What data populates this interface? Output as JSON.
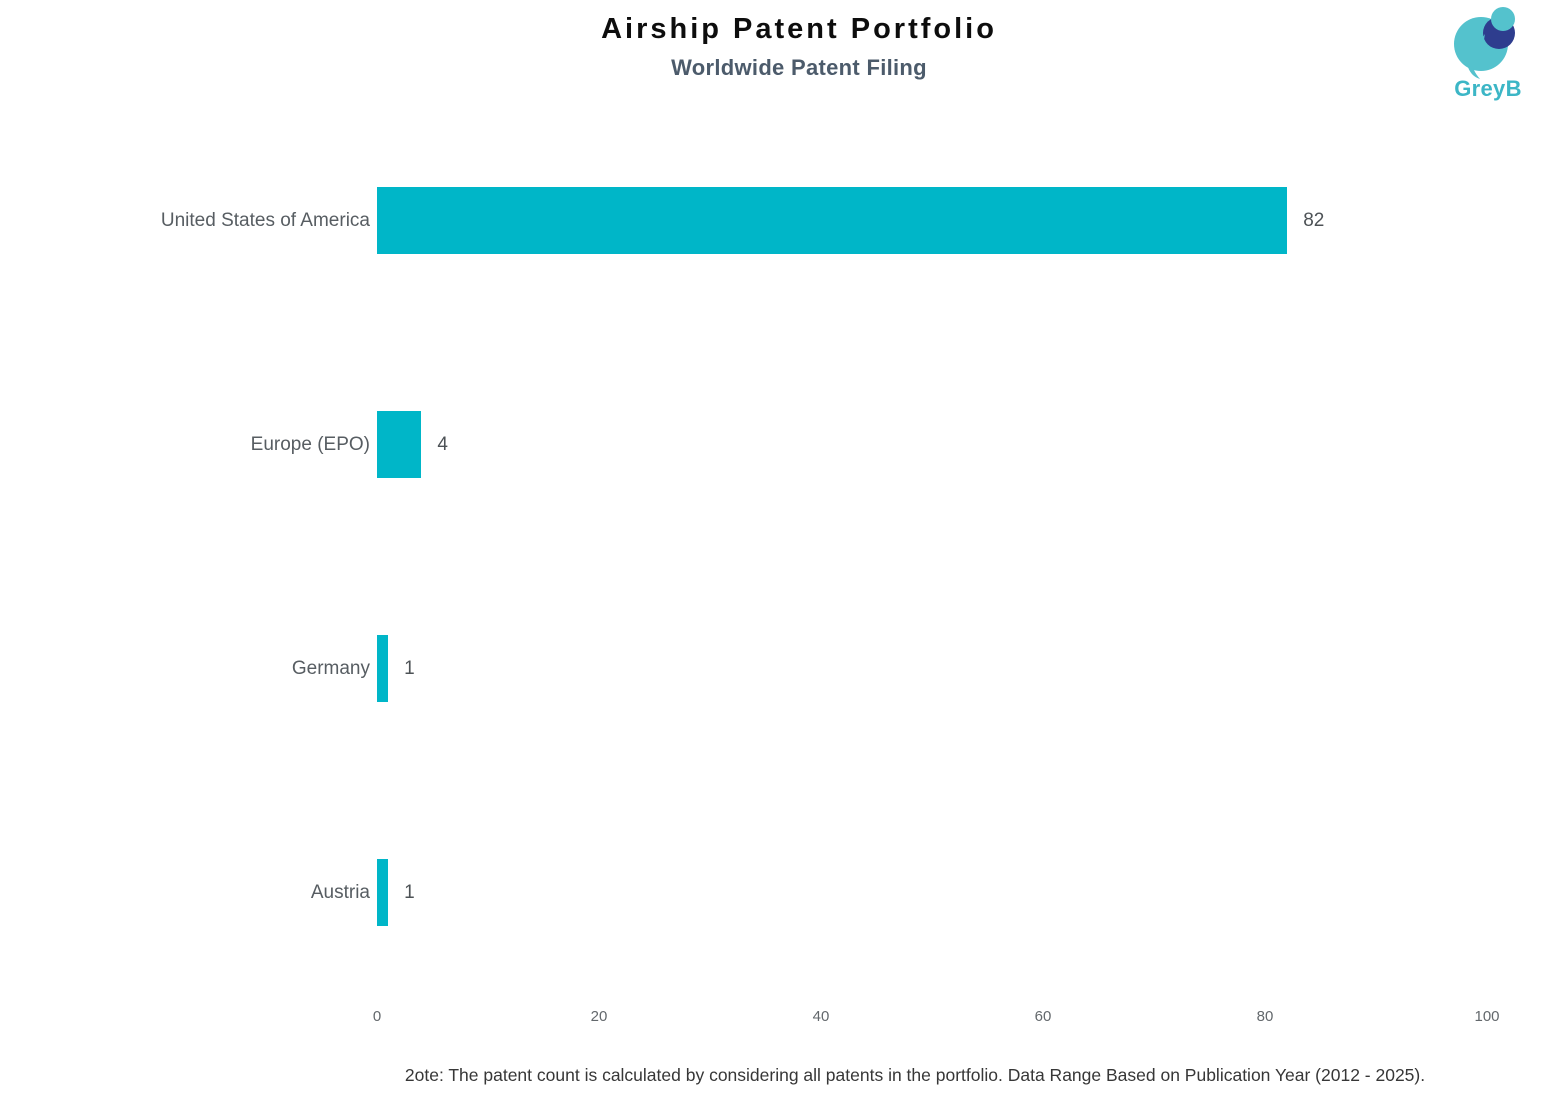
{
  "header": {
    "title": "Airship Patent Portfolio",
    "subtitle": "Worldwide Patent Filing"
  },
  "logo": {
    "text": "GreyB",
    "teal": "#54c2cd",
    "navy": "#2e3d8e",
    "text_color": "#3cb6c6"
  },
  "chart_data": {
    "type": "bar",
    "orientation": "horizontal",
    "title": "Airship Patent Portfolio",
    "subtitle": "Worldwide Patent Filing",
    "categories": [
      "United States of America",
      "Europe (EPO)",
      "Germany",
      "Austria"
    ],
    "values": [
      82,
      4,
      1,
      1
    ],
    "xlim": [
      0,
      100
    ],
    "xticks": [
      0,
      20,
      40,
      60,
      80,
      100
    ],
    "bar_color": "#00b6c8",
    "grid": false,
    "value_labels_shown": true,
    "legend": "none"
  },
  "footer": {
    "note": "2ote: The patent count is calculated by considering all patents in the portfolio. Data Range Based on Publication Year (2012 - 2025)."
  }
}
